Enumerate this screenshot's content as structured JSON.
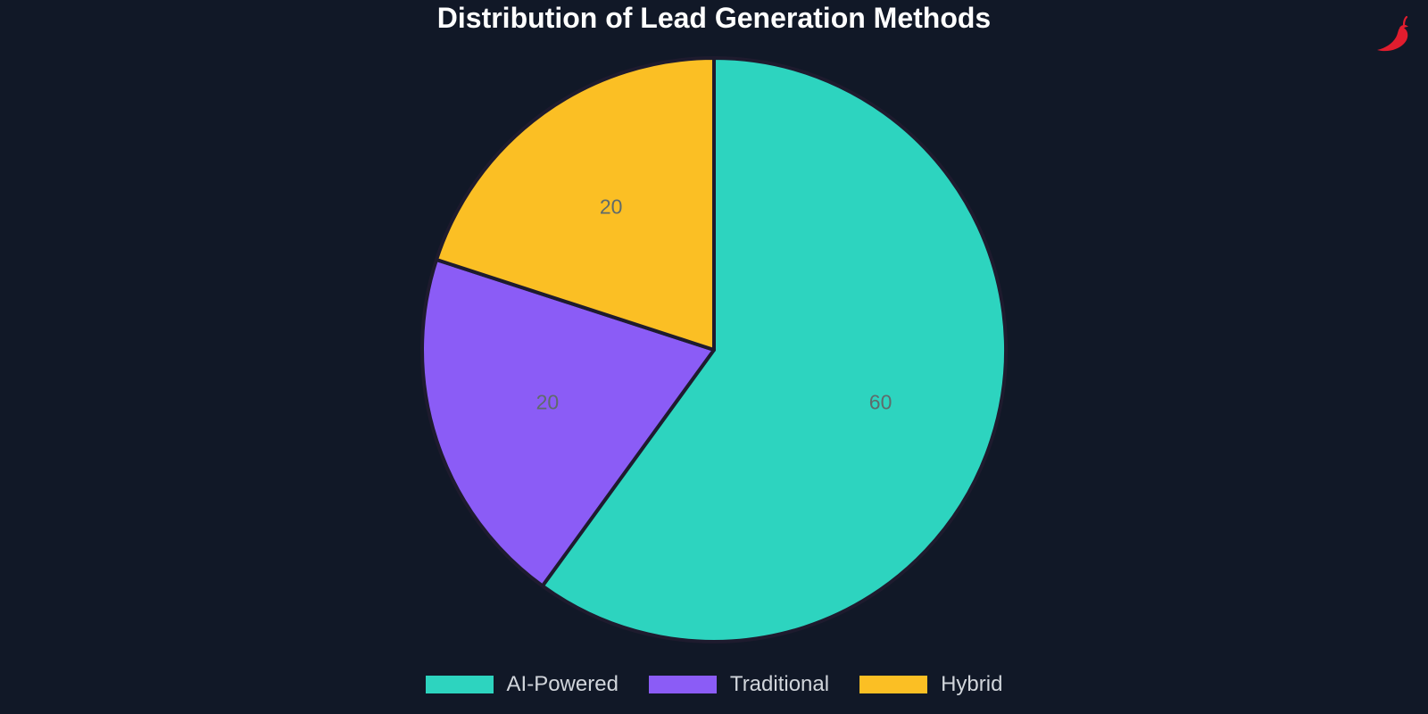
{
  "chart_data": {
    "type": "pie",
    "title": "Distribution of Lead Generation Methods",
    "categories": [
      "AI-Powered",
      "Traditional",
      "Hybrid"
    ],
    "values": [
      60,
      20,
      20
    ],
    "colors": [
      "#2dd4bf",
      "#8b5cf6",
      "#fbbf24"
    ],
    "data_labels": [
      "60",
      "20",
      "20"
    ],
    "legend_position": "bottom",
    "start_angle": "12 o'clock, clockwise",
    "background": "#111827",
    "slice_border_color": "#1e1b2e"
  },
  "logo": {
    "icon": "chili-pepper-icon",
    "color": "#e11d2e"
  }
}
